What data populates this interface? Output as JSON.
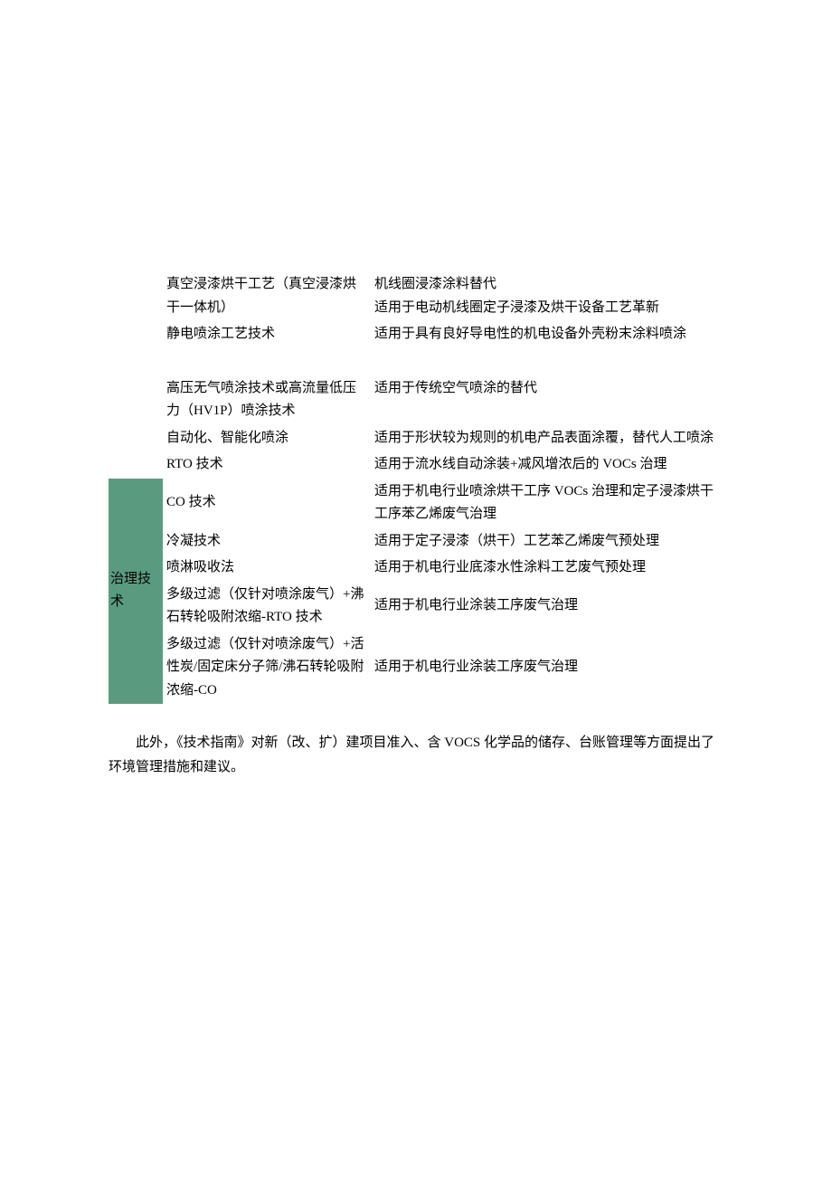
{
  "colors": {
    "category_bg": "#5a9b7f",
    "text": "#000000",
    "page_bg": "#ffffff"
  },
  "typography": {
    "font_family": "SimSun",
    "font_size_pt": 11,
    "line_height": 1.7
  },
  "table": {
    "category_label": "治理技术",
    "rows": [
      {
        "tech": "真空浸漆烘干工艺（真空浸漆烘干一体机）",
        "desc": "机线圈浸漆涂料替代\n适用于电动机线圈定子浸漆及烘干设备工艺革新"
      },
      {
        "tech": "静电喷涂工艺技术",
        "desc": "适用于具有良好导电性的机电设备外壳粉末涂料喷涂"
      },
      {
        "tech": "高压无气喷涂技术或高流量低压力（HV1P）喷涂技术",
        "desc": "适用于传统空气喷涂的替代"
      },
      {
        "tech": "自动化、智能化喷涂",
        "desc": "适用于形状较为规则的机电产品表面涂覆，替代人工喷涂"
      },
      {
        "tech": "RTO 技术",
        "desc": "适用于流水线自动涂装+减风增浓后的 VOCs 治理"
      },
      {
        "tech": "CO 技术",
        "desc": "适用于机电行业喷涂烘干工序 VOCs 治理和定子浸漆烘干工序苯乙烯废气治理"
      },
      {
        "tech": "冷凝技术",
        "desc": "适用于定子浸漆（烘干）工艺苯乙烯废气预处理"
      },
      {
        "tech": "喷淋吸收法",
        "desc": "适用于机电行业底漆水性涂料工艺废气预处理"
      },
      {
        "tech": "多级过滤（仅针对喷涂废气）+沸石转轮吸附浓缩-RTO 技术",
        "desc": "适用于机电行业涂装工序废气治理"
      },
      {
        "tech": "多级过滤（仅针对喷涂废气）+活性炭/固定床分子筛/沸石转轮吸附浓缩-CO",
        "desc": "适用于机电行业涂装工序废气治理"
      }
    ]
  },
  "footer": "此外，《技术指南》对新（改、扩）建项目准入、含 VOCS 化学品的储存、台账管理等方面提出了环境管理措施和建议。"
}
